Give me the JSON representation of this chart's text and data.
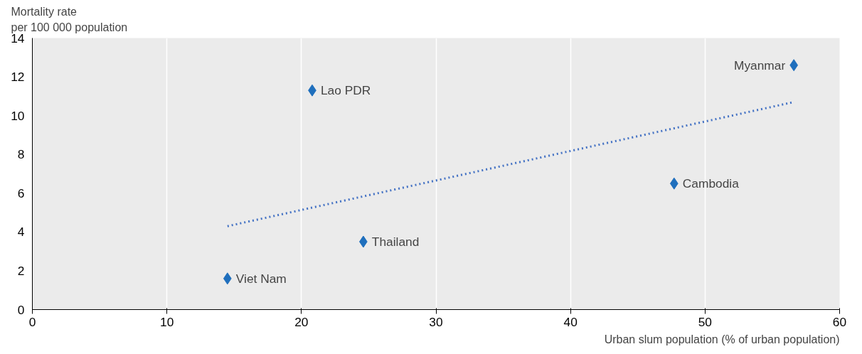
{
  "chart_data": {
    "type": "scatter",
    "xlabel": "Urban slum population (% of urban population)",
    "ylabel": "Mortality rate\nper 100 000 population",
    "series": [
      {
        "color": "#1f6fbd",
        "x": [
          14.5,
          20.8,
          24.6,
          47.7,
          56.6
        ],
        "values": [
          1.6,
          11.3,
          3.5,
          6.5,
          12.6
        ],
        "marker": "diamond"
      },
      {
        "type": "line",
        "color": "#4472c4",
        "x": [
          14.5,
          56.6
        ],
        "values": [
          4.3,
          10.7
        ],
        "line_style": "dotted"
      }
    ],
    "annotations": [
      {
        "text": "Viet Nam",
        "x": 14.5,
        "y": 1.6
      },
      {
        "text": "Lao PDR",
        "x": 20.8,
        "y": 11.3
      },
      {
        "text": "Thailand",
        "x": 24.6,
        "y": 3.5
      },
      {
        "text": "Cambodia",
        "x": 47.7,
        "y": 6.5
      },
      {
        "text": "Myanmar",
        "x": 56.6,
        "y": 12.6
      }
    ],
    "xlim": [
      0,
      60
    ],
    "ylim": [
      0,
      14
    ],
    "xticks": [
      0,
      10,
      20,
      30,
      40,
      50,
      60
    ],
    "yticks": [
      0,
      2,
      4,
      6,
      8,
      10,
      12,
      14
    ],
    "grid": "x"
  }
}
